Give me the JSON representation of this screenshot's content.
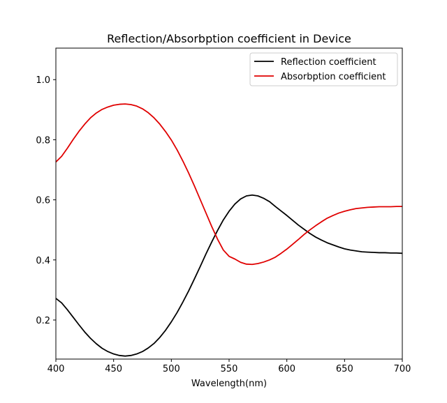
{
  "chart_data": {
    "type": "line",
    "title": "Reflection/Absorbption  coefficient in Device",
    "xlabel": "Wavelength(nm)",
    "ylabel": "",
    "xlim": [
      400,
      700
    ],
    "ylim": [
      0.07,
      1.105
    ],
    "xticks": [
      400,
      450,
      500,
      550,
      600,
      650,
      700
    ],
    "yticks": [
      0.2,
      0.4,
      0.6,
      0.8,
      1.0
    ],
    "xtick_labels": [
      "400",
      "450",
      "500",
      "550",
      "600",
      "650",
      "700"
    ],
    "ytick_labels": [
      "0.2",
      "0.4",
      "0.6",
      "0.8",
      "1.0"
    ],
    "grid": false,
    "legend_position": "top-right",
    "series": [
      {
        "name": "Reflection coefficient",
        "color": "#000000",
        "x": [
          400,
          405,
          410,
          415,
          420,
          425,
          430,
          435,
          440,
          445,
          450,
          455,
          460,
          465,
          470,
          475,
          480,
          485,
          490,
          495,
          500,
          505,
          510,
          515,
          520,
          525,
          530,
          535,
          540,
          545,
          550,
          555,
          560,
          565,
          570,
          575,
          580,
          585,
          590,
          595,
          600,
          605,
          610,
          615,
          620,
          625,
          630,
          635,
          640,
          645,
          650,
          655,
          660,
          665,
          670,
          675,
          680,
          685,
          690,
          695,
          700
        ],
        "values": [
          0.272,
          0.257,
          0.234,
          0.209,
          0.184,
          0.16,
          0.139,
          0.121,
          0.106,
          0.095,
          0.087,
          0.082,
          0.08,
          0.082,
          0.087,
          0.095,
          0.107,
          0.122,
          0.142,
          0.166,
          0.194,
          0.225,
          0.26,
          0.297,
          0.337,
          0.378,
          0.42,
          0.46,
          0.498,
          0.533,
          0.562,
          0.586,
          0.603,
          0.613,
          0.616,
          0.613,
          0.605,
          0.594,
          0.578,
          0.563,
          0.548,
          0.532,
          0.516,
          0.502,
          0.488,
          0.476,
          0.466,
          0.457,
          0.45,
          0.443,
          0.437,
          0.433,
          0.43,
          0.427,
          0.426,
          0.425,
          0.424,
          0.424,
          0.423,
          0.423,
          0.422
        ]
      },
      {
        "name": "Absorbption coefficient",
        "color": "#e00000",
        "x": [
          400,
          405,
          410,
          415,
          420,
          425,
          430,
          435,
          440,
          445,
          450,
          455,
          460,
          465,
          470,
          475,
          480,
          485,
          490,
          495,
          500,
          505,
          510,
          515,
          520,
          525,
          530,
          535,
          540,
          545,
          550,
          555,
          560,
          565,
          570,
          575,
          580,
          585,
          590,
          595,
          600,
          605,
          610,
          615,
          620,
          625,
          630,
          635,
          640,
          645,
          650,
          655,
          660,
          665,
          670,
          675,
          680,
          685,
          690,
          695,
          700
        ],
        "values": [
          0.726,
          0.745,
          0.772,
          0.801,
          0.828,
          0.852,
          0.873,
          0.889,
          0.901,
          0.909,
          0.915,
          0.918,
          0.919,
          0.917,
          0.912,
          0.903,
          0.89,
          0.873,
          0.852,
          0.827,
          0.799,
          0.766,
          0.729,
          0.689,
          0.646,
          0.601,
          0.556,
          0.511,
          0.469,
          0.433,
          0.412,
          0.403,
          0.392,
          0.386,
          0.385,
          0.388,
          0.393,
          0.4,
          0.409,
          0.422,
          0.436,
          0.452,
          0.468,
          0.485,
          0.5,
          0.514,
          0.527,
          0.539,
          0.548,
          0.556,
          0.562,
          0.567,
          0.571,
          0.573,
          0.575,
          0.576,
          0.577,
          0.577,
          0.577,
          0.578,
          0.578
        ]
      }
    ]
  }
}
